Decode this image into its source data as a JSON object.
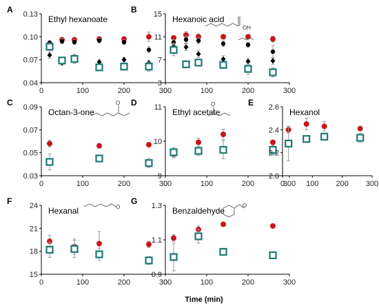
{
  "colors": {
    "red": "#c8141b",
    "teal": "#1a7a73",
    "black": "#000000",
    "error": "#999999",
    "axis": "#000000"
  },
  "x_axis_label": "Time (min)",
  "chart_data": [
    {
      "id": "A",
      "type": "scatter",
      "panel_label": "A",
      "title": "Ethyl hexanoate",
      "xlim": [
        0,
        300
      ],
      "ylim": [
        0.04,
        0.13
      ],
      "grid": false,
      "xticks": [
        0,
        100,
        200,
        300
      ],
      "yticks": [
        0.04,
        0.07,
        0.1,
        0.13
      ],
      "yticklabels": [
        "0.04",
        "0.07",
        "0.10",
        "0.13"
      ],
      "series": [
        {
          "marker": "circle",
          "color": "red",
          "x": [
            20,
            50,
            80,
            140,
            200,
            260
          ],
          "y": [
            0.091,
            0.096,
            0.096,
            0.097,
            0.097,
            0.1
          ],
          "err": [
            0.004,
            0.003,
            0.003,
            0.003,
            0.003,
            0.006
          ]
        },
        {
          "marker": "circle",
          "color": "black",
          "x": [
            20,
            50,
            80,
            140,
            200,
            260
          ],
          "y": [
            0.092,
            0.094,
            0.093,
            0.095,
            0.093,
            0.083
          ],
          "err": [
            0.003,
            0.003,
            0.003,
            0.003,
            0.003,
            0.004
          ]
        },
        {
          "marker": "diamond",
          "color": "black",
          "x": [
            20,
            50,
            80,
            140,
            200,
            260
          ],
          "y": [
            0.076,
            0.066,
            0.073,
            0.067,
            0.07,
            0.066
          ],
          "err": [
            0.004,
            0.003,
            0.003,
            0.003,
            0.003,
            0.003
          ]
        },
        {
          "marker": "square",
          "color": "teal",
          "x": [
            20,
            50,
            80,
            140,
            200,
            260
          ],
          "y": [
            0.087,
            0.069,
            0.071,
            0.06,
            0.061,
            0.061
          ],
          "err": [
            0.005,
            0.004,
            0.006,
            0.004,
            0.004,
            0.006
          ]
        }
      ]
    },
    {
      "id": "B",
      "type": "scatter",
      "panel_label": "B",
      "title": "Hexanoic acid",
      "xlim": [
        0,
        300
      ],
      "ylim": [
        3,
        15
      ],
      "grid": false,
      "xticks": [
        0,
        100,
        200,
        300
      ],
      "yticks": [
        3,
        7,
        11,
        15
      ],
      "yticklabels": [
        "3",
        "7",
        "11",
        "15"
      ],
      "structure_label": "OH",
      "series": [
        {
          "marker": "circle",
          "color": "red",
          "x": [
            20,
            50,
            80,
            140,
            200,
            260
          ],
          "y": [
            10.8,
            11.3,
            11.0,
            11.0,
            11.0,
            10.6
          ],
          "err": [
            0.4,
            0.6,
            0.5,
            0.4,
            0.3,
            0.5
          ]
        },
        {
          "marker": "circle",
          "color": "black",
          "x": [
            20,
            50,
            80,
            140,
            200,
            260
          ],
          "y": [
            10.0,
            10.5,
            10.3,
            9.8,
            9.6,
            8.4
          ],
          "err": [
            0.5,
            0.6,
            0.5,
            0.5,
            0.4,
            1.1
          ]
        },
        {
          "marker": "diamond",
          "color": "black",
          "x": [
            20,
            50,
            80,
            140,
            200,
            260
          ],
          "y": [
            9.3,
            9.2,
            8.0,
            7.1,
            6.7,
            6.8
          ],
          "err": [
            0.6,
            0.6,
            0.6,
            0.6,
            0.5,
            0.6
          ]
        },
        {
          "marker": "square",
          "color": "teal",
          "x": [
            20,
            50,
            80,
            140,
            200,
            260
          ],
          "y": [
            8.7,
            6.2,
            6.5,
            6.1,
            5.4,
            4.8
          ],
          "err": [
            1.0,
            0.5,
            0.6,
            0.5,
            0.9,
            0.8
          ]
        }
      ]
    },
    {
      "id": "C",
      "type": "scatter",
      "panel_label": "C",
      "title": "Octan-3-one",
      "xlim": [
        0,
        300
      ],
      "ylim": [
        0.03,
        0.09
      ],
      "grid": false,
      "xticks": [
        0,
        100,
        200,
        300
      ],
      "yticks": [
        0.03,
        0.05,
        0.07,
        0.09
      ],
      "yticklabels": [
        "0.03",
        "0.05",
        "0.07",
        "0.09"
      ],
      "structure_label": "O",
      "series": [
        {
          "marker": "circle",
          "color": "red",
          "x": [
            20,
            140,
            260
          ],
          "y": [
            0.058,
            0.056,
            0.057
          ],
          "err": [
            0.003,
            0.002,
            0.001
          ]
        },
        {
          "marker": "square",
          "color": "teal",
          "x": [
            20,
            140,
            260
          ],
          "y": [
            0.042,
            0.045,
            0.041
          ],
          "err": [
            0.007,
            0.001,
            0.004
          ]
        }
      ]
    },
    {
      "id": "D",
      "type": "scatter",
      "panel_label": "D",
      "title": "Ethyl acetate",
      "xlim": [
        0,
        300
      ],
      "ylim": [
        9,
        11
      ],
      "grid": false,
      "xticks": [
        0,
        100,
        200,
        300
      ],
      "yticks": [
        9,
        10,
        11
      ],
      "yticklabels": [
        "9",
        "10",
        "11"
      ],
      "structure_label": "O",
      "series": [
        {
          "marker": "circle",
          "color": "red",
          "x": [
            20,
            80,
            140,
            260
          ],
          "y": [
            9.62,
            9.97,
            10.2,
            9.97
          ],
          "err": [
            0.1,
            0.12,
            0.15,
            0.06
          ]
        },
        {
          "marker": "square",
          "color": "teal",
          "x": [
            20,
            80,
            140,
            260
          ],
          "y": [
            9.68,
            9.72,
            9.75,
            9.75
          ],
          "err": [
            0.13,
            0.13,
            0.26,
            0.13
          ]
        }
      ]
    },
    {
      "id": "E",
      "type": "scatter",
      "panel_label": "E",
      "title": "Hexanol",
      "xlim": [
        0,
        300
      ],
      "ylim": [
        2.0,
        2.6
      ],
      "grid": false,
      "xticks": [
        0,
        100,
        200,
        300
      ],
      "yticks": [
        2.0,
        2.2,
        2.4,
        2.6
      ],
      "yticklabels": [
        "2.0",
        "2.2",
        "2.4",
        "2.6"
      ],
      "series": [
        {
          "marker": "circle",
          "color": "red",
          "x": [
            20,
            80,
            140,
            260
          ],
          "y": [
            2.4,
            2.45,
            2.43,
            2.41
          ],
          "err": [
            0.03,
            0.05,
            0.04,
            0.01
          ]
        },
        {
          "marker": "square",
          "color": "teal",
          "x": [
            20,
            80,
            140,
            260
          ],
          "y": [
            2.28,
            2.32,
            2.34,
            2.33
          ],
          "err": [
            0.15,
            0.03,
            0.03,
            0.04
          ]
        }
      ]
    },
    {
      "id": "F",
      "type": "scatter",
      "panel_label": "F",
      "title": "Hexanal",
      "xlim": [
        0,
        300
      ],
      "ylim": [
        15,
        24
      ],
      "grid": false,
      "xticks": [
        0,
        100,
        200,
        300
      ],
      "yticks": [
        15,
        18,
        21,
        24
      ],
      "yticklabels": [
        "15",
        "18",
        "21",
        "24"
      ],
      "structure_label": "O",
      "series": [
        {
          "marker": "circle",
          "color": "red",
          "x": [
            20,
            80,
            140,
            260
          ],
          "y": [
            19.3,
            18.6,
            19.0,
            18.9
          ],
          "err": [
            0.8,
            1.0,
            1.6,
            0.4
          ]
        },
        {
          "marker": "square",
          "color": "teal",
          "x": [
            20,
            80,
            140,
            260
          ],
          "y": [
            18.2,
            18.3,
            17.6,
            16.8
          ],
          "err": [
            1.0,
            1.1,
            0.8,
            0.5
          ]
        }
      ]
    },
    {
      "id": "G",
      "type": "scatter",
      "panel_label": "G",
      "title": "Benzaldehyde",
      "xlim": [
        0,
        300
      ],
      "ylim": [
        0.9,
        1.3
      ],
      "grid": false,
      "xticks": [
        0,
        100,
        200,
        300
      ],
      "yticks": [
        0.9,
        1.1,
        1.3
      ],
      "yticklabels": [
        "0.9",
        "1.1",
        "1.3"
      ],
      "structure_label": "O",
      "series": [
        {
          "marker": "circle",
          "color": "red",
          "x": [
            20,
            80,
            140,
            260
          ],
          "y": [
            1.11,
            1.16,
            1.19,
            1.18
          ],
          "err": [
            0.02,
            0.02,
            0.01,
            0.01
          ]
        },
        {
          "marker": "square",
          "color": "teal",
          "x": [
            20,
            80,
            140,
            260
          ],
          "y": [
            1.0,
            1.12,
            1.03,
            1.01
          ],
          "err": [
            0.08,
            0.04,
            0.02,
            0.02
          ]
        }
      ]
    }
  ]
}
